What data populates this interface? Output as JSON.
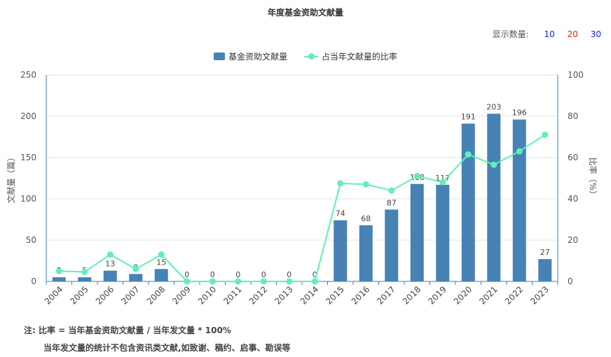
{
  "title": "年度基金资助文献量",
  "count_selector": {
    "label": "显示数量:",
    "options": [
      "10",
      "20",
      "30"
    ],
    "colors": [
      "#1a1aff",
      "#e0201a",
      "#1a1aff"
    ]
  },
  "legend": {
    "bar": "基金资助文献量",
    "line": "占当年文献量的比率"
  },
  "notes": {
    "line1": "注:  比率 = 当年基金资助文献量 / 当年发文量 * 100%",
    "line2": "当年发文量的统计不包含资讯类文献,如致谢、稿约、启事、勘误等"
  },
  "chart_data": {
    "type": "bar",
    "categories": [
      "2004",
      "2005",
      "2006",
      "2007",
      "2008",
      "2009",
      "2010",
      "2011",
      "2012",
      "2013",
      "2014",
      "2015",
      "2016",
      "2017",
      "2018",
      "2019",
      "2020",
      "2021",
      "2022",
      "2023"
    ],
    "series": [
      {
        "name": "基金资助文献量",
        "type": "bar",
        "axis": "left",
        "color": "#4682B4",
        "values": [
          5,
          5,
          13,
          9,
          15,
          0,
          0,
          0,
          0,
          0,
          0,
          74,
          68,
          87,
          118,
          117,
          191,
          203,
          196,
          27
        ]
      },
      {
        "name": "占当年文献量的比率",
        "type": "line",
        "axis": "right",
        "color": "#5ef0b7",
        "values": [
          5,
          4.6,
          13,
          6,
          13,
          0,
          0,
          0,
          0,
          0,
          0,
          47.5,
          47,
          44,
          51,
          48,
          61.5,
          56.5,
          63,
          71
        ]
      }
    ],
    "ylabel_left": "文献量（篇）",
    "ylabel_right": "比率（%）",
    "ylim_left": [
      0,
      250
    ],
    "yticks_left": [
      0,
      50,
      100,
      150,
      200,
      250
    ],
    "ylim_right": [
      0,
      100
    ],
    "yticks_right": [
      0,
      20,
      40,
      60,
      80,
      100
    ],
    "grid": true,
    "legend_position": "top-center",
    "data_labels": "bars"
  }
}
